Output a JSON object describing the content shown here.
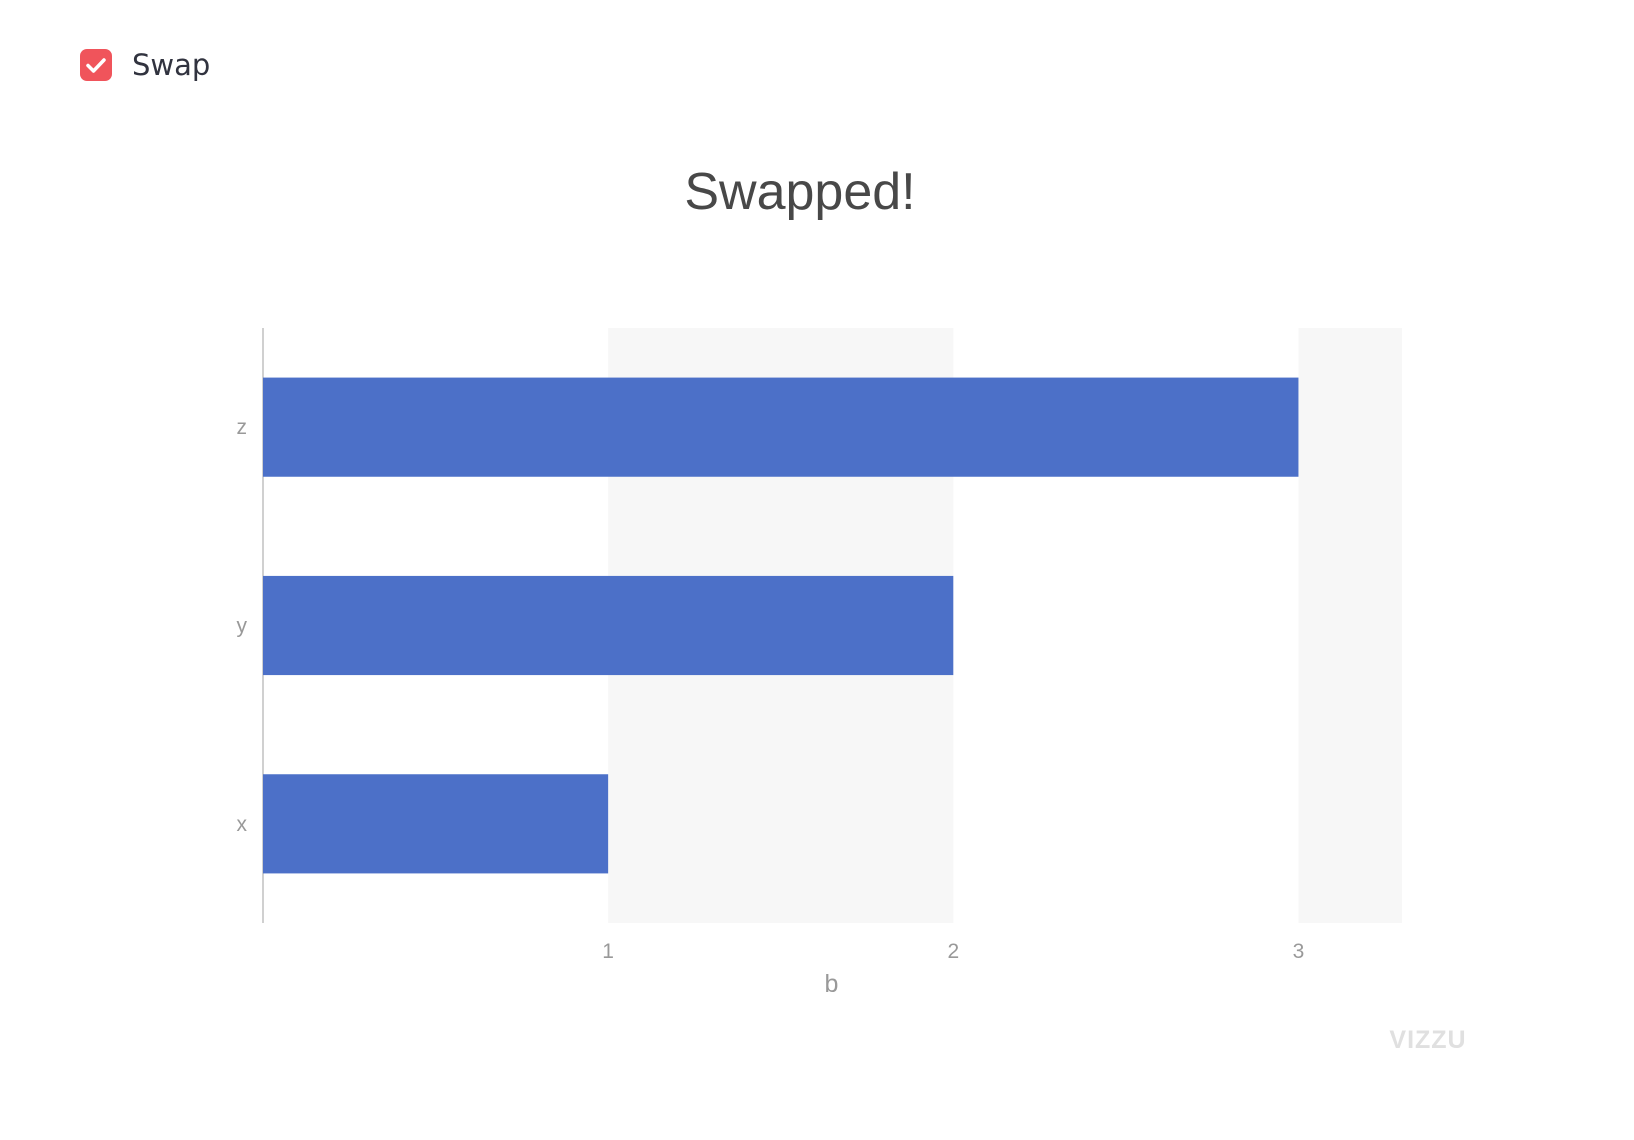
{
  "control": {
    "swap_label": "Swap",
    "checked": true,
    "accent_color": "#f0545b"
  },
  "chart_data": {
    "type": "bar",
    "orientation": "horizontal",
    "title": "Swapped!",
    "categories": [
      "x",
      "y",
      "z"
    ],
    "values": [
      1,
      2,
      3
    ],
    "xlabel": "b",
    "ylabel": "",
    "xlim": [
      0,
      3.3
    ],
    "xticks": [
      1,
      2,
      3
    ],
    "grid": "alternating bands",
    "bar_color": "#4c70c8",
    "band_color": "#f7f7f7",
    "logo": "VIZZU"
  }
}
